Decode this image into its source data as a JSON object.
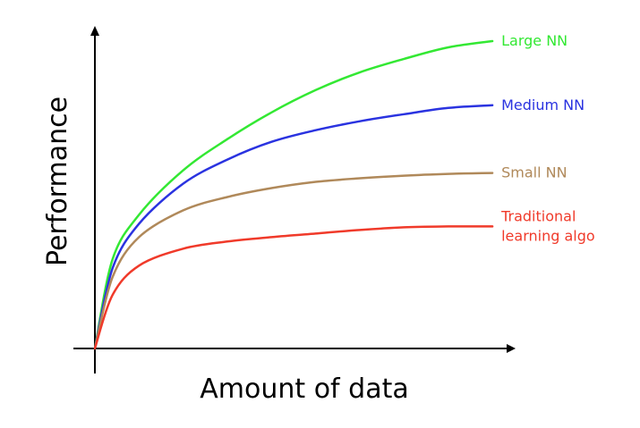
{
  "chart_data": {
    "type": "line",
    "xlabel": "Amount of data",
    "ylabel": "Performance",
    "x": [
      0,
      2,
      5,
      10,
      15,
      20,
      25,
      30,
      35,
      40,
      45
    ],
    "xlim": [
      0,
      46
    ],
    "ylim": [
      0,
      35
    ],
    "grid": false,
    "legend": "none",
    "series": [
      {
        "name": "Large NN",
        "color": "#33e833",
        "values": [
          0,
          10,
          15,
          20,
          23.5,
          26.5,
          29,
          31,
          32.5,
          33.8,
          34.5
        ]
      },
      {
        "name": "Medium NN",
        "color": "#2a33e0",
        "values": [
          0,
          9,
          14,
          18.5,
          21.2,
          23.2,
          24.5,
          25.5,
          26.3,
          27,
          27.3
        ]
      },
      {
        "name": "Small NN",
        "color": "#b0895a",
        "values": [
          0,
          8,
          12.5,
          15.5,
          17,
          18,
          18.7,
          19.1,
          19.4,
          19.6,
          19.7
        ]
      },
      {
        "name": "Traditional learning algo",
        "label_lines": [
          "Traditional",
          "learning algo"
        ],
        "color": "#f03a2a",
        "values": [
          0,
          6,
          9.3,
          11.2,
          12,
          12.5,
          12.9,
          13.3,
          13.6,
          13.7,
          13.7
        ]
      }
    ]
  }
}
